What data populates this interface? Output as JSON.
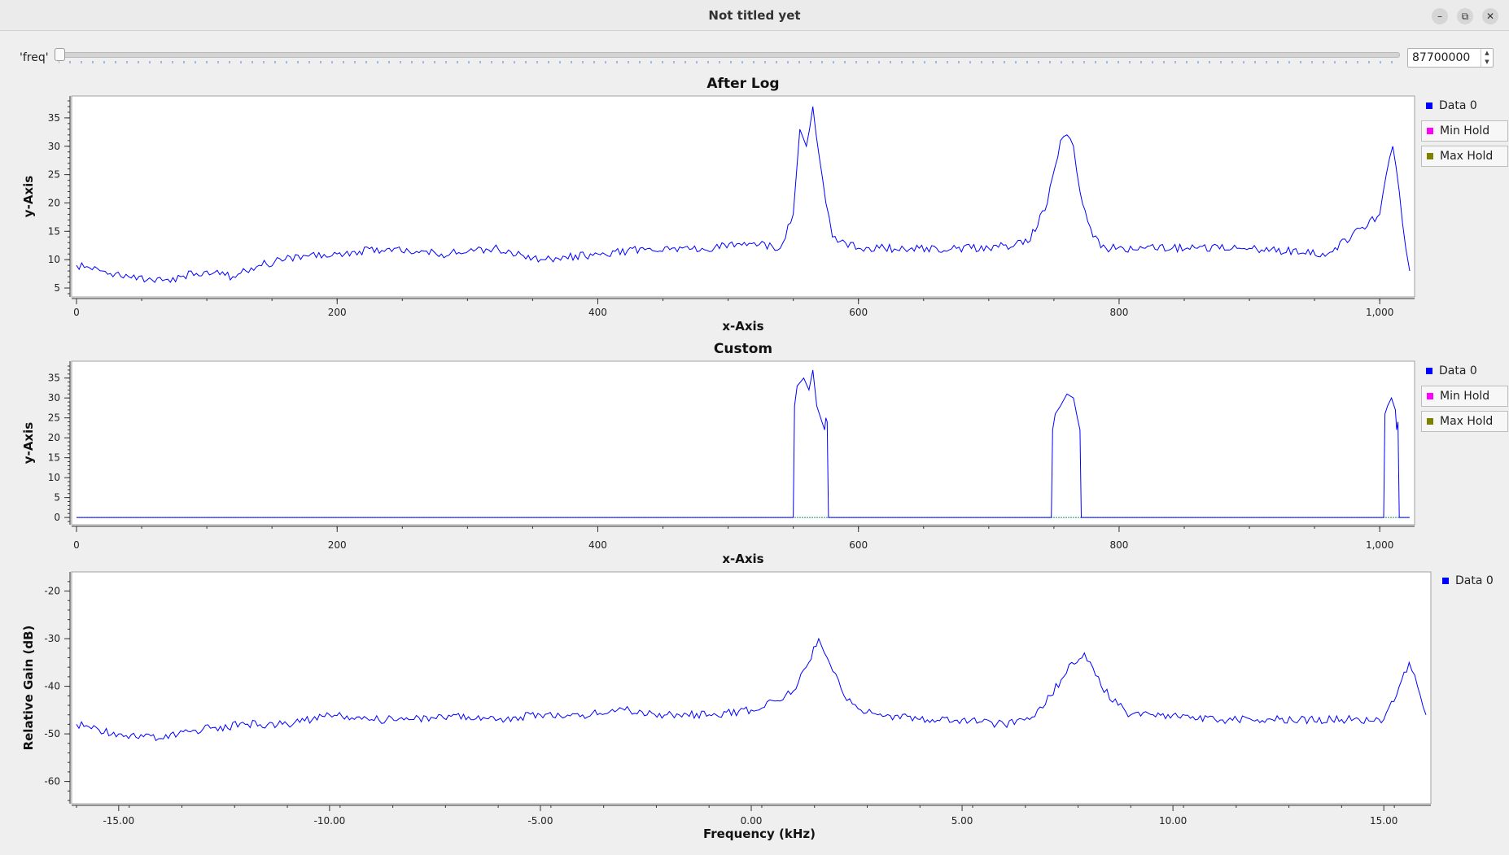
{
  "window": {
    "title": "Not titled yet",
    "buttons": [
      {
        "name": "minimize-button",
        "glyph": "–"
      },
      {
        "name": "restore-button",
        "glyph": "⧉"
      },
      {
        "name": "close-button",
        "glyph": "✕"
      }
    ]
  },
  "control": {
    "label": "'freq'",
    "value": "87700000",
    "slider_fraction": 0.0
  },
  "colors": {
    "data0": "#0000ff",
    "min_hold": "#ff00ff",
    "max_hold": "#808000",
    "baseline": "#1f8f6a"
  },
  "legend": {
    "data0": "Data 0",
    "min_hold": "Min Hold",
    "max_hold": "Max Hold"
  },
  "chart_data": [
    {
      "type": "line",
      "title": "After Log",
      "xlabel": "x-Axis",
      "ylabel": "y-Axis",
      "xlim": [
        0,
        1023
      ],
      "ylim": [
        4,
        38
      ],
      "xticks": [
        "0",
        "200",
        "400",
        "600",
        "800",
        "1,000"
      ],
      "xtick_values": [
        0,
        200,
        400,
        600,
        800,
        1000
      ],
      "yticks": [
        "5",
        "10",
        "15",
        "20",
        "25",
        "30",
        "35"
      ],
      "ytick_values": [
        5,
        10,
        15,
        20,
        25,
        30,
        35
      ],
      "series": [
        {
          "name": "Data 0",
          "x": [
            0,
            20,
            40,
            60,
            80,
            100,
            120,
            140,
            160,
            180,
            200,
            240,
            280,
            320,
            360,
            400,
            440,
            480,
            520,
            540,
            550,
            555,
            560,
            565,
            570,
            575,
            580,
            590,
            600,
            620,
            660,
            700,
            730,
            745,
            755,
            760,
            765,
            770,
            780,
            790,
            820,
            860,
            900,
            960,
            1000,
            1005,
            1010,
            1015,
            1020,
            1023
          ],
          "values": [
            9,
            8,
            7,
            6,
            7,
            8,
            7,
            9,
            10,
            11,
            11,
            12,
            11,
            12,
            10,
            11,
            12,
            12,
            13,
            12,
            18,
            33,
            30,
            37,
            28,
            20,
            14,
            13,
            12,
            12,
            12,
            12,
            13,
            20,
            31,
            32,
            30,
            22,
            14,
            12,
            12,
            12,
            12,
            11,
            18,
            25,
            30,
            22,
            12,
            8
          ]
        }
      ]
    },
    {
      "type": "line",
      "title": "Custom",
      "xlabel": "x-Axis",
      "ylabel": "y-Axis",
      "xlim": [
        0,
        1023
      ],
      "ylim": [
        -1,
        38
      ],
      "xticks": [
        "0",
        "200",
        "400",
        "600",
        "800",
        "1,000"
      ],
      "xtick_values": [
        0,
        200,
        400,
        600,
        800,
        1000
      ],
      "yticks": [
        "0",
        "5",
        "10",
        "15",
        "20",
        "25",
        "30",
        "35"
      ],
      "ytick_values": [
        0,
        5,
        10,
        15,
        20,
        25,
        30,
        35
      ],
      "series": [
        {
          "name": "Data 0",
          "x": [
            0,
            550,
            551,
            553,
            558,
            562,
            565,
            568,
            572,
            574,
            575,
            576,
            577,
            578,
            748,
            749,
            751,
            755,
            760,
            765,
            768,
            770,
            771,
            1003,
            1004,
            1006,
            1009,
            1012,
            1013,
            1014,
            1015,
            1023
          ],
          "values": [
            0,
            0,
            28,
            33,
            35,
            32,
            37,
            28,
            24,
            22,
            25,
            24,
            0,
            0,
            0,
            22,
            26,
            28,
            31,
            30,
            25,
            22,
            0,
            0,
            26,
            28,
            30,
            27,
            22,
            24,
            0,
            0
          ]
        }
      ]
    },
    {
      "type": "line",
      "title": "",
      "xlabel": "Frequency (kHz)",
      "ylabel": "Relative Gain (dB)",
      "xlim": [
        -16,
        16
      ],
      "ylim": [
        -64,
        -17
      ],
      "xticks": [
        "-15.00",
        "-10.00",
        "-5.00",
        "0.00",
        "5.00",
        "10.00",
        "15.00"
      ],
      "xtick_values": [
        -15,
        -10,
        -5,
        0,
        5,
        10,
        15
      ],
      "yticks": [
        "-20",
        "-30",
        "-40",
        "-50",
        "-60"
      ],
      "ytick_values": [
        -20,
        -30,
        -40,
        -50,
        -60
      ],
      "series": [
        {
          "name": "Data 0",
          "x": [
            -16,
            -15,
            -14,
            -13,
            -12,
            -11,
            -10,
            -9,
            -8,
            -7,
            -6,
            -5,
            -4,
            -3,
            -2,
            -1,
            0,
            0.5,
            1.0,
            1.3,
            1.6,
            1.8,
            2.2,
            2.6,
            3,
            4,
            5,
            6,
            6.6,
            7.1,
            7.6,
            7.9,
            8.3,
            8.7,
            9,
            10,
            11,
            12,
            13,
            14,
            15,
            15.3,
            15.6,
            15.8,
            16
          ],
          "values": [
            -48,
            -50,
            -51,
            -49,
            -48,
            -48,
            -46,
            -47,
            -47,
            -46,
            -47,
            -46,
            -46,
            -45,
            -46,
            -46,
            -45,
            -43,
            -41,
            -36,
            -30,
            -34,
            -42,
            -45,
            -46,
            -47,
            -47,
            -48,
            -47,
            -42,
            -35,
            -33,
            -40,
            -44,
            -46,
            -46,
            -47,
            -47,
            -47,
            -47,
            -47,
            -42,
            -35,
            -40,
            -46
          ]
        }
      ]
    }
  ]
}
